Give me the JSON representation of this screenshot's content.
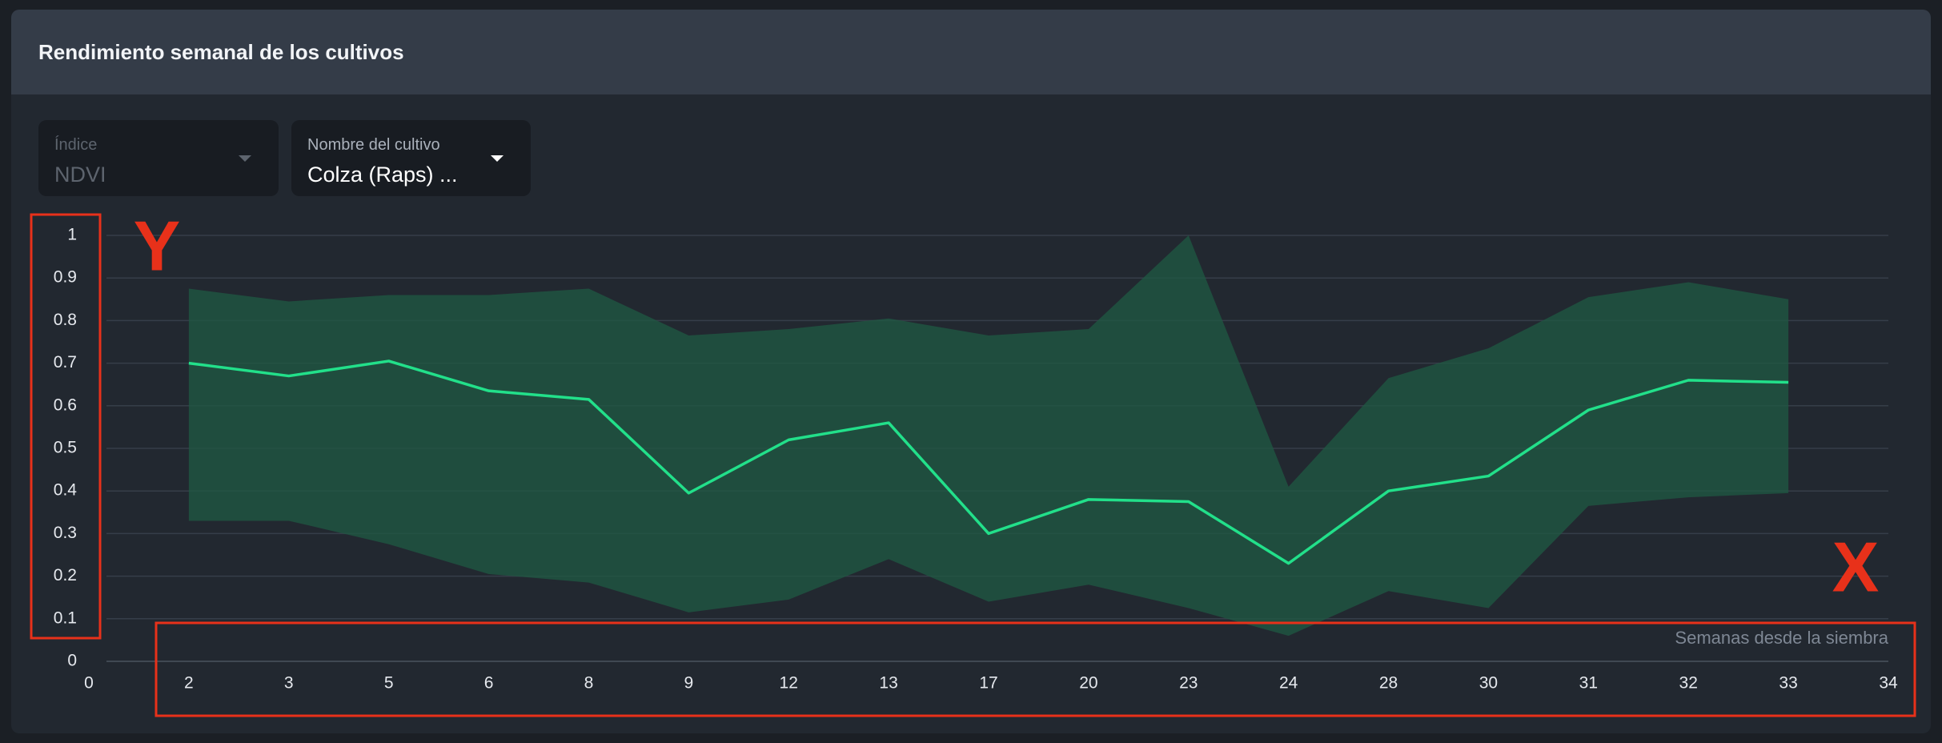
{
  "header": {
    "title": "Rendimiento semanal de los cultivos"
  },
  "filters": [
    {
      "label": "Índice",
      "value": "NDVI",
      "disabled": true
    },
    {
      "label": "Nombre del cultivo",
      "value": "Colza (Raps) ...",
      "disabled": false
    }
  ],
  "chart_data": {
    "type": "line",
    "x_label": "Semanas desde la siembra",
    "categories": [
      "0",
      "2",
      "3",
      "5",
      "6",
      "8",
      "9",
      "12",
      "13",
      "17",
      "20",
      "23",
      "24",
      "28",
      "30",
      "31",
      "32",
      "33",
      "34"
    ],
    "series": [
      {
        "color": "#22e08a",
        "values": [
          null,
          0.7,
          0.67,
          0.705,
          0.635,
          0.615,
          0.395,
          0.52,
          0.56,
          0.3,
          0.38,
          0.375,
          0.23,
          0.4,
          0.435,
          0.59,
          0.66,
          0.655,
          null
        ]
      }
    ],
    "band": {
      "color": "#1f5a43",
      "upper": [
        null,
        0.875,
        0.845,
        0.86,
        0.86,
        0.875,
        0.765,
        0.78,
        0.805,
        0.765,
        0.78,
        1.0,
        0.41,
        0.665,
        0.735,
        0.855,
        0.89,
        0.85,
        null
      ],
      "lower": [
        null,
        0.33,
        0.33,
        0.275,
        0.205,
        0.185,
        0.115,
        0.145,
        0.24,
        0.14,
        0.18,
        0.125,
        0.06,
        0.165,
        0.125,
        0.365,
        0.385,
        0.395,
        null
      ]
    },
    "ylim": [
      0,
      1
    ],
    "yticks": [
      0,
      0.1,
      0.2,
      0.3,
      0.4,
      0.5,
      0.6,
      0.7,
      0.8,
      0.9,
      1
    ],
    "grid": true,
    "annotations": [
      "Y",
      "X"
    ]
  }
}
